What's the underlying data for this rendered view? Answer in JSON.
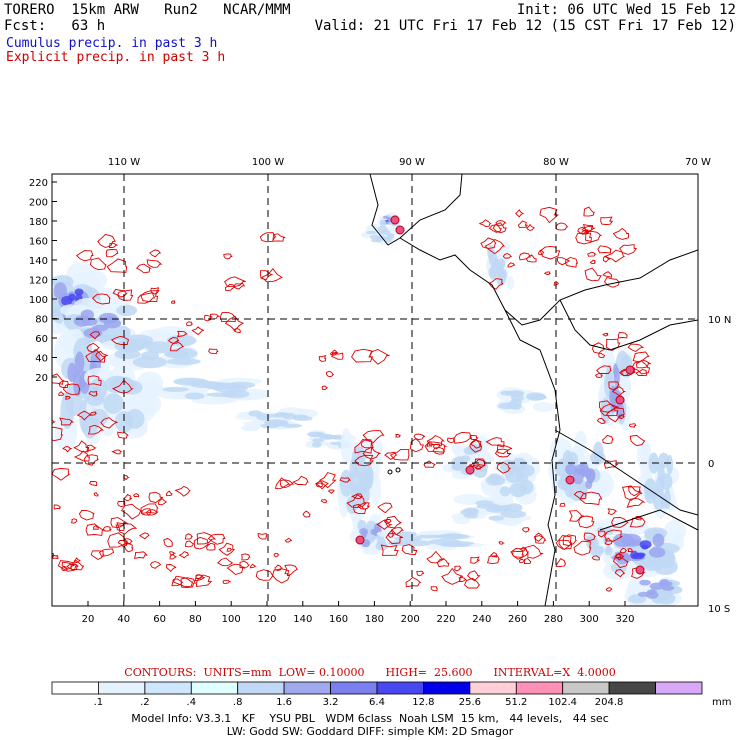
{
  "header": {
    "model": "TORERO  15km ARW   Run2   NCAR/MMM",
    "init": "Init: 06 UTC Wed 15 Feb 12",
    "fcst": "Fcst:   63 h",
    "valid": "Valid: 21 UTC Fri 17 Feb 12 (15 CST Fri 17 Feb 12)",
    "cumulus": "Cumulus precip. in past 3 h",
    "explicit": "Explicit precip. in past 3 h"
  },
  "map": {
    "top_lon_labels": [
      "110 W",
      "100 W",
      "90 W",
      "80 W",
      "70 W"
    ],
    "right_lat_labels": [
      "10 N",
      "0",
      "10 S"
    ],
    "left_ticks": [
      "220",
      "200",
      "180",
      "160",
      "140",
      "120",
      "100",
      "80",
      "60",
      "40",
      "20"
    ],
    "bottom_ticks": [
      "20",
      "40",
      "60",
      "80",
      "100",
      "120",
      "140",
      "160",
      "180",
      "200",
      "220",
      "240",
      "260",
      "280",
      "300",
      "320"
    ]
  },
  "contours_info": "CONTOURS:  UNITS=mm  LOW= 0.10000      HIGH=  25.600      INTERVAL=X  4.0000",
  "colorbar": {
    "labels": [
      ".1",
      ".2",
      ".4",
      ".8",
      "1.6",
      "3.2",
      "6.4",
      "12.8",
      "25.6",
      "51.2",
      "102.4",
      "204.8"
    ],
    "units": "mm",
    "colors": [
      "#ffffff",
      "#e6f3ff",
      "#cfe6ff",
      "#e0ffff",
      "#c0d8f4",
      "#a0a8ee",
      "#7c80ee",
      "#4848f0",
      "#0000e8",
      "#ffd0d8",
      "#ff90b8",
      "#c8c8c8",
      "#464646",
      "#d8a8f8"
    ]
  },
  "footer": {
    "line1": "Model Info: V3.3.1   KF    YSU PBL   WDM 6class  Noah LSM  15 km,   44 levels,   44 sec",
    "line2": "LW: Godd SW: Goddard DIFF: simple KM: 2D Smagor"
  }
}
